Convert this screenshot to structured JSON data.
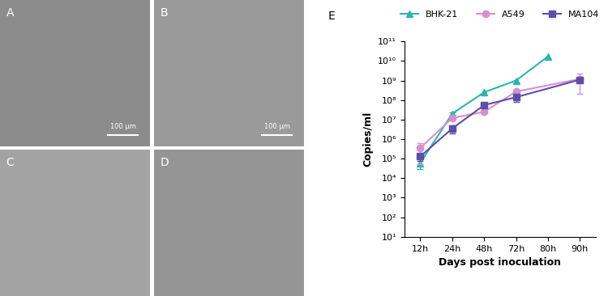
{
  "panels": [
    {
      "label": "A",
      "scale_bar": "100 μm"
    },
    {
      "label": "B",
      "scale_bar": "100 μm"
    },
    {
      "label": "C"
    },
    {
      "label": "D"
    }
  ],
  "chart_label": "E",
  "chart_data": {
    "type": "line",
    "x_label": "Days post inoculation",
    "y_label": "Copies/ml",
    "categories": [
      "12h",
      "24h",
      "48h",
      "72h",
      "80h",
      "90h"
    ],
    "log": "y",
    "grid": false,
    "legend": "upper center",
    "ylim": [
      10,
      100000000000
    ],
    "yticks": [
      {
        "value": 10,
        "label": "10¹"
      },
      {
        "value": 100,
        "label": "10²"
      },
      {
        "value": 1000,
        "label": "10³"
      },
      {
        "value": 10000,
        "label": "10⁴"
      },
      {
        "value": 100000,
        "label": "10⁵"
      },
      {
        "value": 1000000,
        "label": "10⁶"
      },
      {
        "value": 10000000,
        "label": "10⁷"
      },
      {
        "value": 100000000,
        "label": "10⁸"
      },
      {
        "value": 1000000000,
        "label": "10⁹"
      },
      {
        "value": 10000000000,
        "label": "10¹⁰"
      },
      {
        "value": 100000000000,
        "label": "10¹¹"
      }
    ],
    "series": [
      {
        "name": "BHK-21",
        "color": "#2bb5b0",
        "marker": "triangle",
        "values": [
          60000,
          20000000,
          250000000,
          1000000000,
          17000000000,
          null
        ],
        "error": [
          30000,
          3000000,
          null,
          null,
          null,
          null
        ]
      },
      {
        "name": "A549",
        "color": "#d98fcf",
        "marker": "circle",
        "values": [
          350000,
          12000000,
          25000000,
          270000000,
          null,
          1200000000
        ],
        "error": [
          300000,
          null,
          null,
          null,
          null,
          1000000000
        ]
      },
      {
        "name": "MA104",
        "color": "#5b4fa8",
        "marker": "square",
        "values": [
          130000,
          3500000,
          55000000,
          140000000,
          null,
          1100000000
        ],
        "error": [
          50000,
          1500000,
          15000000,
          60000000,
          null,
          300000000
        ]
      }
    ]
  }
}
